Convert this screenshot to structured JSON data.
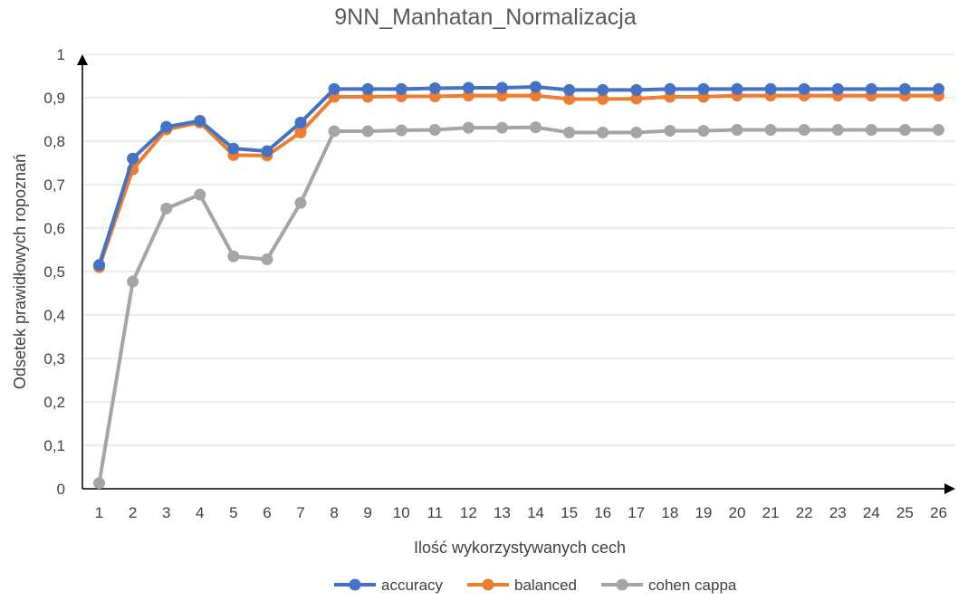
{
  "chart_data": {
    "type": "line",
    "title": "9NN_Manhatan_Normalizacja",
    "xlabel": "Ilość wykorzystywanych cech",
    "ylabel": "Odsetek prawidłowych ropoznań",
    "x": [
      1,
      2,
      3,
      4,
      5,
      6,
      7,
      8,
      9,
      10,
      11,
      12,
      13,
      14,
      15,
      16,
      17,
      18,
      19,
      20,
      21,
      22,
      23,
      24,
      25,
      26
    ],
    "y_ticks": [
      "0",
      "0,1",
      "0,2",
      "0,3",
      "0,4",
      "0,5",
      "0,6",
      "0,7",
      "0,8",
      "0,9",
      "1"
    ],
    "ylim": [
      0,
      1
    ],
    "grid": true,
    "legend_position": "bottom",
    "series": [
      {
        "name": "accuracy",
        "color": "#4472C4",
        "values": [
          0.515,
          0.76,
          0.833,
          0.847,
          0.783,
          0.777,
          0.843,
          0.92,
          0.92,
          0.92,
          0.922,
          0.923,
          0.923,
          0.925,
          0.918,
          0.918,
          0.918,
          0.92,
          0.92,
          0.92,
          0.92,
          0.92,
          0.92,
          0.92,
          0.92,
          0.92
        ]
      },
      {
        "name": "balanced",
        "color": "#ED7D31",
        "values": [
          0.51,
          0.735,
          0.827,
          0.843,
          0.768,
          0.767,
          0.82,
          0.902,
          0.902,
          0.903,
          0.903,
          0.905,
          0.905,
          0.905,
          0.897,
          0.897,
          0.898,
          0.902,
          0.902,
          0.905,
          0.905,
          0.905,
          0.905,
          0.905,
          0.905,
          0.905
        ]
      },
      {
        "name": "cohen cappa",
        "color": "#A5A5A5",
        "values": [
          0.013,
          0.477,
          0.645,
          0.677,
          0.535,
          0.528,
          0.658,
          0.823,
          0.823,
          0.825,
          0.826,
          0.831,
          0.831,
          0.832,
          0.82,
          0.82,
          0.82,
          0.824,
          0.824,
          0.826,
          0.826,
          0.826,
          0.826,
          0.826,
          0.826,
          0.826
        ]
      }
    ]
  }
}
